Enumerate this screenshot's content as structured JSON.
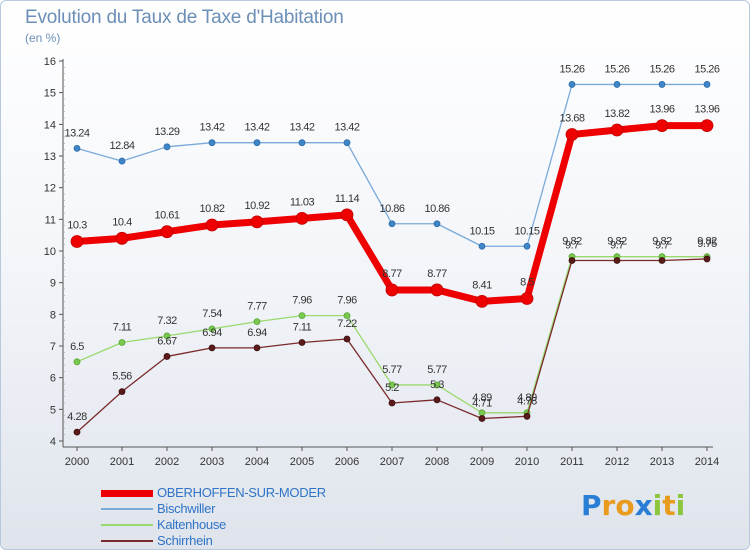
{
  "header": {
    "title": "Evolution du Taux de Taxe d'Habitation",
    "subtitle": "(en %)"
  },
  "chart_data": {
    "type": "line",
    "title": "Evolution du Taux de Taxe d'Habitation",
    "ylabel": "(en %)",
    "xlabel": "",
    "x": [
      2000,
      2001,
      2002,
      2003,
      2004,
      2005,
      2006,
      2007,
      2008,
      2009,
      2010,
      2011,
      2012,
      2013,
      2014
    ],
    "ylim": [
      4,
      16
    ],
    "yticks": [
      4,
      5,
      6,
      7,
      8,
      9,
      10,
      11,
      12,
      13,
      14,
      15,
      16
    ],
    "grid": false,
    "legend_position": "bottom-left",
    "series": [
      {
        "name": "OBERHOFFEN-SUR-MODER",
        "color": "#ee0000",
        "values": [
          10.3,
          10.4,
          10.61,
          10.82,
          10.92,
          11.03,
          11.14,
          8.77,
          8.77,
          8.41,
          8.5,
          13.68,
          13.82,
          13.96,
          13.96
        ],
        "labels": [
          "10.3",
          "10.4",
          "10.61",
          "10.82",
          "10.92",
          "11.03",
          "11.14",
          "8.77",
          "8.77",
          "8.41",
          "8.5",
          "13.68",
          "13.82",
          "13.96",
          "13.96"
        ]
      },
      {
        "name": "Bischwiller",
        "color": "#7aaad9",
        "values": [
          13.24,
          12.84,
          13.29,
          13.42,
          13.42,
          13.42,
          13.42,
          10.86,
          10.86,
          10.15,
          10.15,
          15.26,
          15.26,
          15.26,
          15.26
        ],
        "labels": [
          "13.24",
          "12.84",
          "13.29",
          "13.42",
          "13.42",
          "13.42",
          "13.42",
          "10.86",
          "10.86",
          "10.15",
          "10.15",
          "15.26",
          "15.26",
          "15.26",
          "15.26"
        ]
      },
      {
        "name": "Kaltenhouse",
        "color": "#9ad96e",
        "values": [
          6.5,
          7.11,
          7.32,
          7.54,
          7.77,
          7.96,
          7.96,
          5.77,
          5.77,
          4.89,
          4.89,
          9.82,
          9.82,
          9.82,
          9.82
        ],
        "labels": [
          "6.5",
          "7.11",
          "7.32",
          "7.54",
          "7.77",
          "7.96",
          "7.96",
          "5.77",
          "5.77",
          "4.89",
          "4.89",
          "9.82",
          "9.82",
          "9.82",
          "9.82"
        ]
      },
      {
        "name": "Schirrhein",
        "color": "#7a2a2a",
        "values": [
          4.28,
          5.56,
          6.67,
          6.94,
          6.94,
          7.11,
          7.22,
          5.2,
          5.3,
          4.71,
          4.78,
          9.7,
          9.7,
          9.7,
          9.75
        ],
        "labels": [
          "4.28",
          "5.56",
          "6.67",
          "6.94",
          "6.94",
          "7.11",
          "7.22",
          "5.2",
          "5.3",
          "4.71",
          "4.78",
          "9.7",
          "9.7",
          "9.7",
          "9.75"
        ]
      }
    ]
  },
  "logo": {
    "letters": [
      "P",
      "r",
      "o",
      "x",
      "i",
      "t",
      "i"
    ],
    "colors": [
      "#2a7fd4",
      "#e89b1c",
      "#e89b1c",
      "#2a7fd4",
      "#8cc63f",
      "#e89b1c",
      "#8cc63f"
    ]
  }
}
